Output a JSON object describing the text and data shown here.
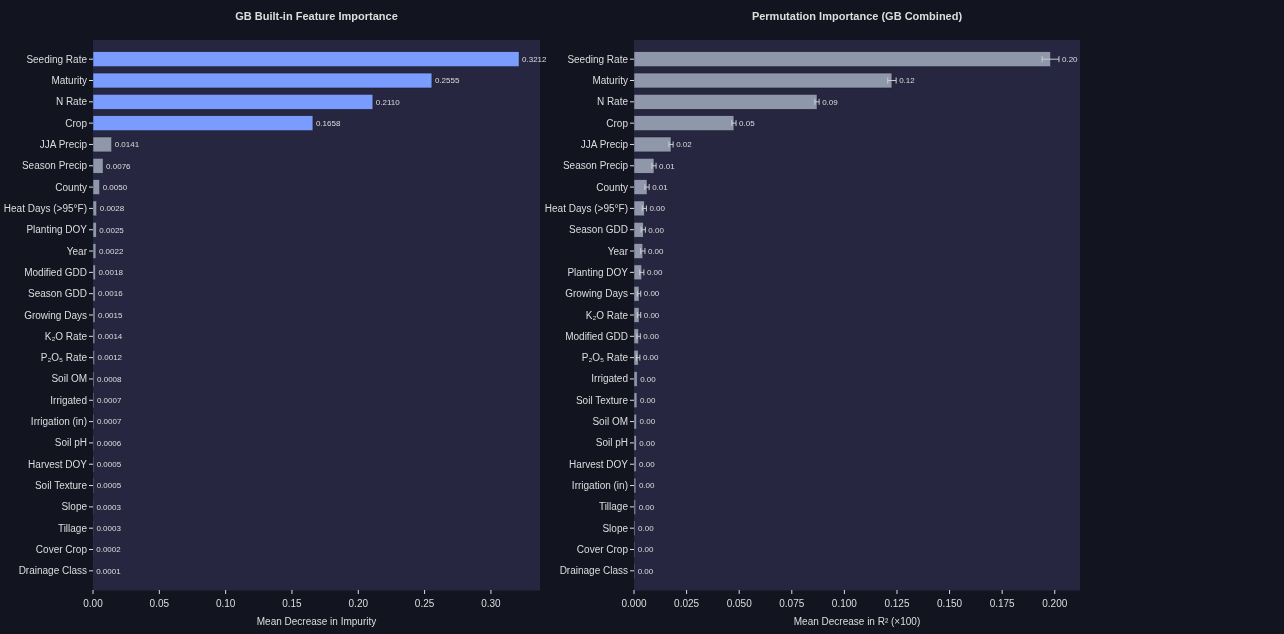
{
  "chart_data": [
    {
      "type": "bar",
      "orientation": "horizontal",
      "title": "GB Built-in Feature Importance",
      "xlabel": "Mean Decrease in Impurity",
      "categories": [
        "Seeding Rate",
        "Maturity",
        "N Rate",
        "Crop",
        "JJA Precip",
        "Season Precip",
        "County",
        "Heat Days (>95°F)",
        "Planting DOY",
        "Year",
        "Modified GDD",
        "Season GDD",
        "Growing Days",
        "K₂O Rate",
        "P₂O₅ Rate",
        "Soil OM",
        "Irrigated",
        "Irrigation (in)",
        "Soil pH",
        "Harvest DOY",
        "Soil Texture",
        "Slope",
        "Tillage",
        "Cover Crop",
        "Drainage Class"
      ],
      "values": [
        0.3212,
        0.2555,
        0.211,
        0.1658,
        0.0141,
        0.0076,
        0.005,
        0.0028,
        0.0025,
        0.0022,
        0.0018,
        0.0016,
        0.0015,
        0.0014,
        0.0012,
        0.0008,
        0.0007,
        0.0007,
        0.0006,
        0.0005,
        0.0005,
        0.0003,
        0.0003,
        0.0002,
        0.0001
      ],
      "colors": [
        "#7b9cff",
        "#7b9cff",
        "#7b9cff",
        "#7b9cff",
        "#8f97aa",
        "#8f97aa",
        "#8f97aa",
        "#8f97aa",
        "#8f97aa",
        "#8f97aa",
        "#8f97aa",
        "#8f97aa",
        "#8f97aa",
        "#8f97aa",
        "#8f97aa",
        "#8f97aa",
        "#8f97aa",
        "#8f97aa",
        "#8f97aa",
        "#8f97aa",
        "#8f97aa",
        "#8f97aa",
        "#8f97aa",
        "#8f97aa",
        "#8f97aa"
      ],
      "value_labels": [
        "0.3212",
        "0.2555",
        "0.2110",
        "0.1658",
        "0.0141",
        "0.0076",
        "0.0050",
        "0.0028",
        "0.0025",
        "0.0022",
        "0.0018",
        "0.0016",
        "0.0015",
        "0.0014",
        "0.0012",
        "0.0008",
        "0.0007",
        "0.0007",
        "0.0006",
        "0.0005",
        "0.0005",
        "0.0003",
        "0.0003",
        "0.0002",
        "0.0001"
      ],
      "xlim": [
        0,
        0.337
      ],
      "xticks": [
        {
          "value": 0,
          "label": "0.00"
        },
        {
          "value": 0.05,
          "label": "0.05"
        },
        {
          "value": 0.1,
          "label": "0.10"
        },
        {
          "value": 0.15,
          "label": "0.15"
        },
        {
          "value": 0.2,
          "label": "0.20"
        },
        {
          "value": 0.25,
          "label": "0.25"
        },
        {
          "value": 0.3,
          "label": "0.30"
        }
      ]
    },
    {
      "type": "bar",
      "orientation": "horizontal",
      "title": "Permutation Importance (GB Combined)",
      "xlabel": "Mean Decrease in R² (×100)",
      "categories": [
        "Seeding Rate",
        "Maturity",
        "N Rate",
        "Crop",
        "JJA Precip",
        "Season Precip",
        "County",
        "Heat Days (>95°F)",
        "Season GDD",
        "Year",
        "Planting DOY",
        "Growing Days",
        "K₂O Rate",
        "Modified GDD",
        "P₂O₅ Rate",
        "Irrigated",
        "Soil Texture",
        "Soil OM",
        "Soil pH",
        "Harvest DOY",
        "Irrigation (in)",
        "Tillage",
        "Slope",
        "Cover Crop",
        "Drainage Class"
      ],
      "values": [
        0.198,
        0.1226,
        0.087,
        0.0475,
        0.0176,
        0.0095,
        0.0062,
        0.0049,
        0.0044,
        0.0042,
        0.0037,
        0.0024,
        0.0024,
        0.0022,
        0.002,
        0.0015,
        0.0014,
        0.0012,
        0.0011,
        0.001,
        0.0009,
        0.0008,
        0.0005,
        0.0004,
        0.0003
      ],
      "errors": [
        0.004,
        0.002,
        0.001,
        0.001,
        0.001,
        0.001,
        0.001,
        0.001,
        0.001,
        0.001,
        0.001,
        0.0008,
        0.0008,
        0.0008,
        0.0008,
        null,
        null,
        null,
        null,
        null,
        null,
        null,
        null,
        null,
        null
      ],
      "value_labels": [
        "0.20",
        "0.12",
        "0.09",
        "0.05",
        "0.02",
        "0.01",
        "0.01",
        "0.00",
        "0.00",
        "0.00",
        "0.00",
        "0.00",
        "0.00",
        "0.00",
        "0.00",
        "0.00",
        "0.00",
        "0.00",
        "0.00",
        "0.00",
        "0.00",
        "0.00",
        "0.00",
        "0.00",
        "0.00"
      ],
      "colors": [
        "#8f97aa",
        "#8f97aa",
        "#8f97aa",
        "#8f97aa",
        "#8f97aa",
        "#8f97aa",
        "#8f97aa",
        "#8f97aa",
        "#8f97aa",
        "#8f97aa",
        "#8f97aa",
        "#8f97aa",
        "#8f97aa",
        "#8f97aa",
        "#8f97aa",
        "#8f97aa",
        "#8f97aa",
        "#8f97aa",
        "#8f97aa",
        "#8f97aa",
        "#8f97aa",
        "#8f97aa",
        "#8f97aa",
        "#8f97aa",
        "#8f97aa"
      ],
      "xlim": [
        0,
        0.212
      ],
      "xticks": [
        {
          "value": 0,
          "label": "0.000"
        },
        {
          "value": 0.025,
          "label": "0.025"
        },
        {
          "value": 0.05,
          "label": "0.050"
        },
        {
          "value": 0.075,
          "label": "0.075"
        },
        {
          "value": 0.1,
          "label": "0.100"
        },
        {
          "value": 0.125,
          "label": "0.125"
        },
        {
          "value": 0.15,
          "label": "0.150"
        },
        {
          "value": 0.175,
          "label": "0.175"
        },
        {
          "value": 0.2,
          "label": "0.200"
        }
      ]
    }
  ]
}
